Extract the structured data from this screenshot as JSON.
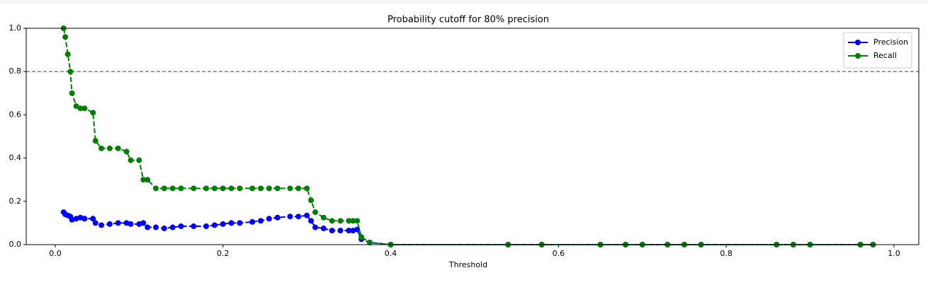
{
  "chart_data": {
    "type": "line",
    "title": "Probability cutoff for 80% precision",
    "x_label": "Threshold",
    "x": [
      0.01,
      0.012,
      0.015,
      0.018,
      0.02,
      0.025,
      0.03,
      0.035,
      0.045,
      0.048,
      0.055,
      0.065,
      0.075,
      0.085,
      0.09,
      0.1,
      0.105,
      0.11,
      0.12,
      0.13,
      0.14,
      0.15,
      0.165,
      0.18,
      0.19,
      0.2,
      0.21,
      0.22,
      0.235,
      0.245,
      0.255,
      0.265,
      0.28,
      0.29,
      0.3,
      0.305,
      0.31,
      0.32,
      0.33,
      0.34,
      0.35,
      0.355,
      0.36,
      0.365,
      0.375,
      0.4,
      0.54,
      0.58,
      0.65,
      0.68,
      0.7,
      0.73,
      0.75,
      0.77,
      0.86,
      0.88,
      0.9,
      0.96,
      0.975
    ],
    "series": [
      {
        "name": "Precision",
        "color": "#0000ff",
        "values": [
          0.15,
          0.14,
          0.135,
          0.13,
          0.115,
          0.12,
          0.125,
          0.12,
          0.12,
          0.1,
          0.09,
          0.095,
          0.1,
          0.1,
          0.095,
          0.095,
          0.1,
          0.08,
          0.08,
          0.075,
          0.08,
          0.085,
          0.085,
          0.085,
          0.09,
          0.095,
          0.1,
          0.1,
          0.105,
          0.11,
          0.12,
          0.125,
          0.13,
          0.13,
          0.135,
          0.11,
          0.08,
          0.075,
          0.065,
          0.065,
          0.065,
          0.065,
          0.07,
          0.025,
          0.01,
          0,
          0,
          0,
          0,
          0,
          0,
          0,
          0,
          0,
          0,
          0,
          0,
          0,
          0
        ]
      },
      {
        "name": "Recall",
        "color": "#008000",
        "values": [
          1.0,
          0.96,
          0.88,
          0.8,
          0.7,
          0.64,
          0.63,
          0.63,
          0.61,
          0.48,
          0.445,
          0.445,
          0.445,
          0.43,
          0.39,
          0.39,
          0.3,
          0.3,
          0.26,
          0.26,
          0.26,
          0.26,
          0.26,
          0.26,
          0.26,
          0.26,
          0.26,
          0.26,
          0.26,
          0.26,
          0.26,
          0.26,
          0.26,
          0.26,
          0.26,
          0.205,
          0.15,
          0.125,
          0.11,
          0.11,
          0.11,
          0.11,
          0.11,
          0.035,
          0.01,
          0,
          0,
          0,
          0,
          0,
          0,
          0,
          0,
          0,
          0,
          0,
          0,
          0,
          0
        ]
      }
    ],
    "hline": {
      "value": 0.8,
      "color": "#808080"
    },
    "xlim": [
      -0.0346,
      1.0296
    ],
    "ylim": [
      0,
      1
    ],
    "xticks": [
      {
        "value": 0,
        "label": "0.0"
      },
      0.2,
      0.4,
      0.6,
      0.8,
      {
        "value": 1,
        "label": "1.0"
      }
    ],
    "yticks": [
      {
        "value": 0,
        "label": "0.0"
      },
      0.2,
      0.4,
      0.6,
      0.8,
      {
        "value": 1,
        "label": "1.0"
      }
    ],
    "legend": "upper right"
  }
}
